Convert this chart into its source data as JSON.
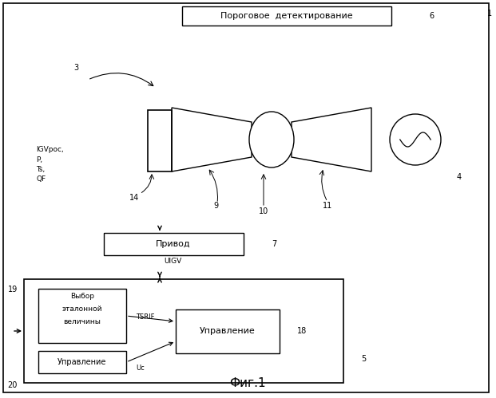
{
  "bg_color": "#ffffff",
  "line_color": "#000000",
  "threshold_label": "Пороговое  детектирование",
  "drive_label": "Привод",
  "ref_sel_line1": "Выбор",
  "ref_sel_line2": "эталонной",
  "ref_sel_line3": "величины",
  "control_label": "Управление",
  "title": "Фиг.1",
  "igv_pos": "IGVрос,",
  "igv_p": "P,",
  "igv_ts": "Ts,",
  "igv_qf": "QF",
  "uigv": "UIGV",
  "tsrif": "TSRIF",
  "uc": "Uc"
}
